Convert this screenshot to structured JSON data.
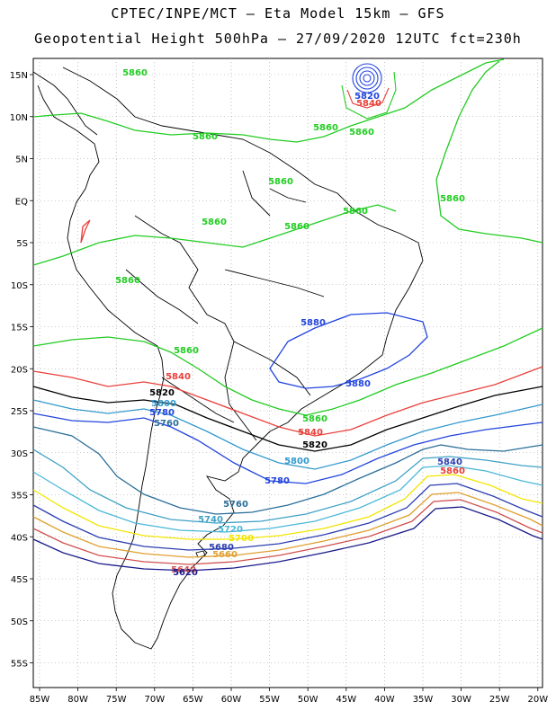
{
  "header": {
    "line1": "CPTEC/INPE/MCT –  Eta Model 15km – GFS",
    "line2": "Geopotential Height 500hPa – 27/09/2020 12UTC fct=230h"
  },
  "axes": {
    "lat_labels": [
      "15N",
      "10N",
      "5N",
      "EQ",
      "5S",
      "10S",
      "15S",
      "20S",
      "25S",
      "30S",
      "35S",
      "40S",
      "45S",
      "50S",
      "55S"
    ],
    "lon_labels": [
      "85W",
      "80W",
      "75W",
      "70W",
      "65W",
      "60W",
      "55W",
      "50W",
      "45W",
      "40W",
      "35W",
      "30W",
      "25W",
      "20W"
    ]
  },
  "colors": {
    "c5860": "#22cc22",
    "c5840": "#e8413c",
    "c5820": "#000000",
    "c5800": "#3399cc",
    "c5780": "#2244dd",
    "c5760": "#2a6e9a",
    "c5740": "#3fa1c6",
    "c5720": "#4bb8d8",
    "c5700": "#f2e600",
    "c5680": "#2d3fb0",
    "c5660": "#e0a030",
    "c5640": "#d05050",
    "c5620": "#1a1a8a"
  },
  "contour_labels": [
    {
      "text": "5860",
      "color": "c5860"
    },
    {
      "text": "5860",
      "color": "c5860"
    },
    {
      "text": "5860",
      "color": "c5860"
    },
    {
      "text": "5860",
      "color": "c5860"
    },
    {
      "text": "5860",
      "color": "c5860"
    },
    {
      "text": "5860",
      "color": "c5860"
    },
    {
      "text": "5860",
      "color": "c5860"
    },
    {
      "text": "5860",
      "color": "c5860"
    },
    {
      "text": "5860",
      "color": "c5860"
    },
    {
      "text": "5860",
      "color": "c5860"
    },
    {
      "text": "5860",
      "color": "c5860"
    },
    {
      "text": "5860",
      "color": "c5860"
    },
    {
      "text": "5840",
      "color": "c5840"
    },
    {
      "text": "5840",
      "color": "c5840"
    },
    {
      "text": "5820",
      "color": "c5820"
    },
    {
      "text": "5820",
      "color": "c5820"
    },
    {
      "text": "5800",
      "color": "c5800"
    },
    {
      "text": "5800",
      "color": "c5800"
    },
    {
      "text": "5780",
      "color": "c5780"
    },
    {
      "text": "5780",
      "color": "c5780"
    },
    {
      "text": "5760",
      "color": "c5760"
    },
    {
      "text": "5760",
      "color": "c5760"
    },
    {
      "text": "5740",
      "color": "c5740"
    },
    {
      "text": "5720",
      "color": "c5720"
    },
    {
      "text": "5700",
      "color": "c5700"
    },
    {
      "text": "5680",
      "color": "c5680"
    },
    {
      "text": "5660",
      "color": "c5660"
    },
    {
      "text": "5640",
      "color": "c5640"
    },
    {
      "text": "5620",
      "color": "c5620"
    },
    {
      "text": "5880",
      "color": "c5780"
    },
    {
      "text": "5880",
      "color": "c5780"
    },
    {
      "text": "5840",
      "color": "c5680"
    },
    {
      "text": "5860",
      "color": "c5840"
    },
    {
      "text": "5820",
      "color": "c5780"
    },
    {
      "text": "5840",
      "color": "c5840"
    }
  ]
}
